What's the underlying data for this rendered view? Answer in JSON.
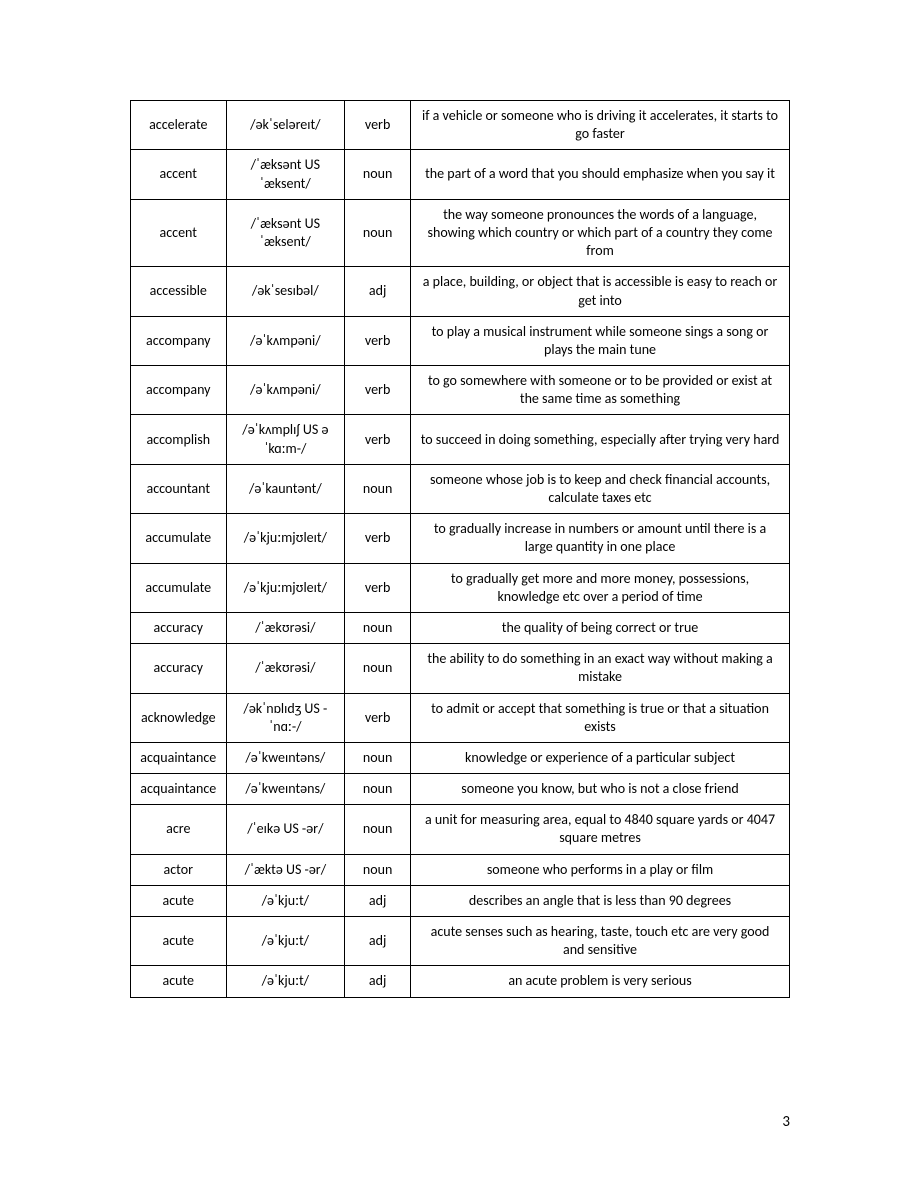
{
  "table": {
    "columns": [
      "word",
      "pronunciation",
      "pos",
      "definition"
    ],
    "col_widths_pct": [
      14.5,
      18,
      10,
      57.5
    ],
    "border_color": "#000000",
    "background_color": "#ffffff",
    "font_family": "Calibri",
    "font_size_pt": 11,
    "text_color": "#000000",
    "rows": [
      {
        "word": "accelerate",
        "pron": "/əkˈseləreɪt/",
        "pos": "verb",
        "def": "if a vehicle or someone who is driving it accelerates, it starts to go faster"
      },
      {
        "word": "accent",
        "pron": "/ˈæksənt US ˈæksent/",
        "pos": "noun",
        "def": "the part of a word that you should emphasize when you say it"
      },
      {
        "word": "accent",
        "pron": "/ˈæksənt US ˈæksent/",
        "pos": "noun",
        "def": "the way someone pronounces the words of a language, showing which country or which part of a country they come from"
      },
      {
        "word": "accessible",
        "pron": "/əkˈsesɪbəl/",
        "pos": "adj",
        "def": "a place, building, or object that is accessible is easy to reach or get into"
      },
      {
        "word": "accompany",
        "pron": "/əˈkʌmpəni/",
        "pos": "verb",
        "def": "to play a musical instrument while someone sings a song or plays the main tune"
      },
      {
        "word": "accompany",
        "pron": "/əˈkʌmpəni/",
        "pos": "verb",
        "def": "to go somewhere with someone or to be provided or exist at the same time as something"
      },
      {
        "word": "accomplish",
        "pron": "/əˈkʌmplɪʃ US əˈkɑːm-/",
        "pos": "verb",
        "def": "to succeed in doing something, especially after trying very hard"
      },
      {
        "word": "accountant",
        "pron": "/əˈkauntənt/",
        "pos": "noun",
        "def": "someone whose job is to keep and check financial accounts, calculate taxes etc"
      },
      {
        "word": "accumulate",
        "pron": "/əˈkjuːmjʊleɪt/",
        "pos": "verb",
        "def": "to gradually increase in numbers or amount until there is a large quantity in one place"
      },
      {
        "word": "accumulate",
        "pron": "/əˈkjuːmjʊleɪt/",
        "pos": "verb",
        "def": "to gradually get more and more money, possessions, knowledge etc over a period of time"
      },
      {
        "word": "accuracy",
        "pron": "/ˈækʊrəsi/",
        "pos": "noun",
        "def": "the quality of being correct or true"
      },
      {
        "word": "accuracy",
        "pron": "/ˈækʊrəsi/",
        "pos": "noun",
        "def": "the ability to do something in an exact way without making a mistake"
      },
      {
        "word": "acknowledge",
        "pron": "/əkˈnɒlɪdʒ US -ˈnɑː-/",
        "pos": "verb",
        "def": "to admit or accept that something is true or that a situation exists"
      },
      {
        "word": "acquaintance",
        "pron": "/əˈkweɪntəns/",
        "pos": "noun",
        "def": "knowledge or experience of a particular subject"
      },
      {
        "word": "acquaintance",
        "pron": "/əˈkweɪntəns/",
        "pos": "noun",
        "def": "someone you know, but who is not a close friend"
      },
      {
        "word": "acre",
        "pron": "/ˈeɪkə US -ər/",
        "pos": "noun",
        "def": "a unit for measuring area, equal to 4840 square yards or 4047 square metres"
      },
      {
        "word": "actor",
        "pron": "/ˈæktə US -ər/",
        "pos": "noun",
        "def": "someone who performs in a play or film"
      },
      {
        "word": "acute",
        "pron": "/əˈkjuːt/",
        "pos": "adj",
        "def": "describes an angle that is less than 90 degrees"
      },
      {
        "word": "acute",
        "pron": "/əˈkjuːt/",
        "pos": "adj",
        "def": "acute senses such as hearing, taste, touch etc are very good and sensitive"
      },
      {
        "word": "acute",
        "pron": "/əˈkjuːt/",
        "pos": "adj",
        "def": "an acute problem is very serious"
      }
    ]
  },
  "page_number": "3"
}
